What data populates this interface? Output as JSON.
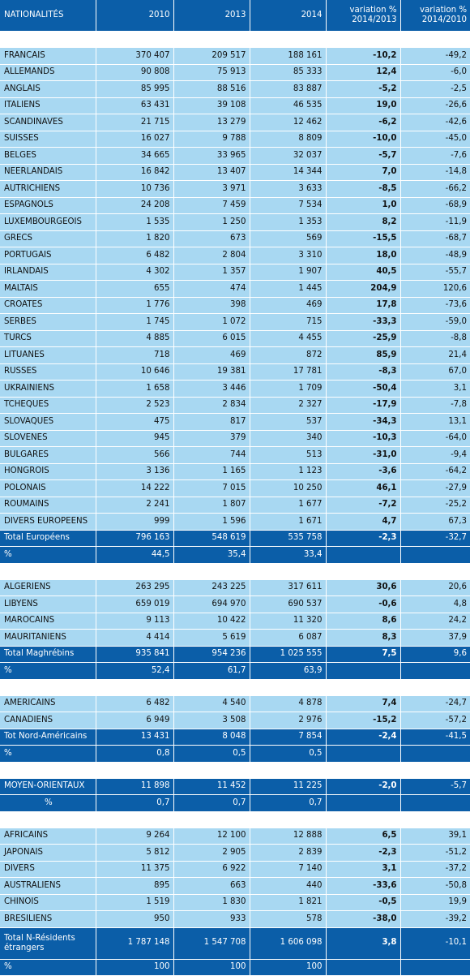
{
  "header": {
    "col0": "NATIONALITÉS",
    "col1": "2010",
    "col2": "2013",
    "col3": "2014",
    "col4_line1": "variation %",
    "col4_line2": "2014/2013",
    "col5_line1": "variation %",
    "col5_line2": "2014/2010"
  },
  "sections": [
    {
      "rows": [
        {
          "type": "data",
          "cells": [
            "FRANCAIS",
            "370 407",
            "209 517",
            "188 161",
            "-10,2",
            "-49,2"
          ]
        },
        {
          "type": "data",
          "cells": [
            "ALLEMANDS",
            "90 808",
            "75 913",
            "85 333",
            "12,4",
            "-6,0"
          ]
        },
        {
          "type": "data",
          "cells": [
            "ANGLAIS",
            "85 995",
            "88 516",
            "83 887",
            "-5,2",
            "-2,5"
          ]
        },
        {
          "type": "data",
          "cells": [
            "ITALIENS",
            "63 431",
            "39 108",
            "46 535",
            "19,0",
            "-26,6"
          ]
        },
        {
          "type": "data",
          "cells": [
            "SCANDINAVES",
            "21 715",
            "13 279",
            "12 462",
            "-6,2",
            "-42,6"
          ]
        },
        {
          "type": "data",
          "cells": [
            "SUISSES",
            "16 027",
            "9 788",
            "8 809",
            "-10,0",
            "-45,0"
          ]
        },
        {
          "type": "data",
          "cells": [
            "BELGES",
            "34 665",
            "33 965",
            "32 037",
            "-5,7",
            "-7,6"
          ]
        },
        {
          "type": "data",
          "cells": [
            "NEERLANDAIS",
            "16 842",
            "13 407",
            "14 344",
            "7,0",
            "-14,8"
          ]
        },
        {
          "type": "data",
          "cells": [
            "AUTRICHIENS",
            "10 736",
            "3 971",
            "3 633",
            "-8,5",
            "-66,2"
          ]
        },
        {
          "type": "data",
          "cells": [
            "ESPAGNOLS",
            "24 208",
            "7 459",
            "7 534",
            "1,0",
            "-68,9"
          ]
        },
        {
          "type": "data",
          "cells": [
            "LUXEMBOURGEOIS",
            "1 535",
            "1 250",
            "1 353",
            "8,2",
            "-11,9"
          ]
        },
        {
          "type": "data",
          "cells": [
            "GRECS",
            "1 820",
            "673",
            "569",
            "-15,5",
            "-68,7"
          ]
        },
        {
          "type": "data",
          "cells": [
            "PORTUGAIS",
            "6 482",
            "2 804",
            "3 310",
            "18,0",
            "-48,9"
          ]
        },
        {
          "type": "data",
          "cells": [
            "IRLANDAIS",
            "4 302",
            "1 357",
            "1 907",
            "40,5",
            "-55,7"
          ]
        },
        {
          "type": "data",
          "cells": [
            "MALTAIS",
            "655",
            "474",
            "1 445",
            "204,9",
            "120,6"
          ]
        },
        {
          "type": "data",
          "cells": [
            "CROATES",
            "1 776",
            "398",
            "469",
            "17,8",
            "-73,6"
          ]
        },
        {
          "type": "data",
          "cells": [
            "SERBES",
            "1 745",
            "1 072",
            "715",
            "-33,3",
            "-59,0"
          ]
        },
        {
          "type": "data",
          "cells": [
            "TURCS",
            "4 885",
            "6 015",
            "4 455",
            "-25,9",
            "-8,8"
          ]
        },
        {
          "type": "data",
          "cells": [
            "LITUANES",
            "718",
            "469",
            "872",
            "85,9",
            "21,4"
          ]
        },
        {
          "type": "data",
          "cells": [
            "RUSSES",
            "10 646",
            "19 381",
            "17 781",
            "-8,3",
            "67,0"
          ]
        },
        {
          "type": "data",
          "cells": [
            "UKRAINIENS",
            "1 658",
            "3 446",
            "1 709",
            "-50,4",
            "3,1"
          ]
        },
        {
          "type": "data",
          "cells": [
            "TCHEQUES",
            "2 523",
            "2 834",
            "2 327",
            "-17,9",
            "-7,8"
          ]
        },
        {
          "type": "data",
          "cells": [
            "SLOVAQUES",
            "475",
            "817",
            "537",
            "-34,3",
            "13,1"
          ]
        },
        {
          "type": "data",
          "cells": [
            "SLOVENES",
            "945",
            "379",
            "340",
            "-10,3",
            "-64,0"
          ]
        },
        {
          "type": "data",
          "cells": [
            "BULGARES",
            "566",
            "744",
            "513",
            "-31,0",
            "-9,4"
          ]
        },
        {
          "type": "data",
          "cells": [
            "HONGROIS",
            "3 136",
            "1 165",
            "1 123",
            "-3,6",
            "-64,2"
          ]
        },
        {
          "type": "data",
          "cells": [
            "POLONAIS",
            "14 222",
            "7 015",
            "10 250",
            "46,1",
            "-27,9"
          ]
        },
        {
          "type": "data",
          "cells": [
            "ROUMAINS",
            "2 241",
            "1 807",
            "1 677",
            "-7,2",
            "-25,2"
          ]
        },
        {
          "type": "data",
          "cells": [
            "DIVERS EUROPEENS",
            "999",
            "1 596",
            "1 671",
            "4,7",
            "67,3"
          ]
        },
        {
          "type": "total",
          "cells": [
            "Total Européens",
            "796 163",
            "548 619",
            "535 758",
            "-2,3",
            "-32,7"
          ]
        },
        {
          "type": "total",
          "cells": [
            "%",
            "44,5",
            "35,4",
            "33,4",
            "",
            ""
          ]
        }
      ]
    },
    {
      "rows": [
        {
          "type": "data",
          "cells": [
            "ALGERIENS",
            "263 295",
            "243 225",
            "317 611",
            "30,6",
            "20,6"
          ]
        },
        {
          "type": "data",
          "cells": [
            "LIBYENS",
            "659 019",
            "694 970",
            "690 537",
            "-0,6",
            "4,8"
          ]
        },
        {
          "type": "data",
          "cells": [
            "MAROCAINS",
            "9 113",
            "10 422",
            "11 320",
            "8,6",
            "24,2"
          ]
        },
        {
          "type": "data",
          "cells": [
            "MAURITANIENS",
            "4 414",
            "5 619",
            "6 087",
            "8,3",
            "37,9"
          ]
        },
        {
          "type": "total",
          "cells": [
            "Total Maghrébins",
            "935 841",
            "954 236",
            "1 025 555",
            "7,5",
            "9,6"
          ]
        },
        {
          "type": "total",
          "cells": [
            "%",
            "52,4",
            "61,7",
            "63,9",
            "",
            ""
          ]
        }
      ]
    },
    {
      "rows": [
        {
          "type": "data",
          "cells": [
            "AMERICAINS",
            "6 482",
            "4 540",
            "4 878",
            "7,4",
            "-24,7"
          ]
        },
        {
          "type": "data",
          "cells": [
            "CANADIENS",
            "6 949",
            "3 508",
            "2 976",
            "-15,2",
            "-57,2"
          ]
        },
        {
          "type": "total",
          "cells": [
            "Tot Nord-Américains",
            "13 431",
            "8 048",
            "7 854",
            "-2,4",
            "-41,5"
          ]
        },
        {
          "type": "total",
          "cells": [
            "%",
            "0,8",
            "0,5",
            "0,5",
            "",
            ""
          ]
        }
      ]
    },
    {
      "rows": [
        {
          "type": "total",
          "cells": [
            "MOYEN-ORIENTAUX",
            "11 898",
            "11 452",
            "11 225",
            "-2,0",
            "-5,7"
          ]
        },
        {
          "type": "total-indent",
          "cells": [
            "%",
            "0,7",
            "0,7",
            "0,7",
            "",
            ""
          ]
        }
      ]
    },
    {
      "rows": [
        {
          "type": "data",
          "cells": [
            "AFRICAINS",
            "9 264",
            "12 100",
            "12 888",
            "6,5",
            "39,1"
          ]
        },
        {
          "type": "data",
          "cells": [
            "JAPONAIS",
            "5 812",
            "2 905",
            "2 839",
            "-2,3",
            "-51,2"
          ]
        },
        {
          "type": "data",
          "cells": [
            "DIVERS",
            "11 375",
            "6 922",
            "7 140",
            "3,1",
            "-37,2"
          ]
        },
        {
          "type": "data",
          "cells": [
            "AUSTRALIENS",
            "895",
            "663",
            "440",
            "-33,6",
            "-50,8"
          ]
        },
        {
          "type": "data",
          "cells": [
            "CHINOIS",
            "1 519",
            "1 830",
            "1 821",
            "-0,5",
            "19,9"
          ]
        },
        {
          "type": "data",
          "cells": [
            "BRESILIENS",
            "950",
            "933",
            "578",
            "-38,0",
            "-39,2"
          ]
        },
        {
          "type": "total-tall",
          "cells": [
            "Total N-Résidents étrangers",
            "1 787 148",
            "1 547 708",
            "1 606 098",
            "3,8",
            "-10,1"
          ]
        },
        {
          "type": "total",
          "cells": [
            "%",
            "100",
            "100",
            "100",
            "",
            ""
          ]
        }
      ]
    }
  ]
}
